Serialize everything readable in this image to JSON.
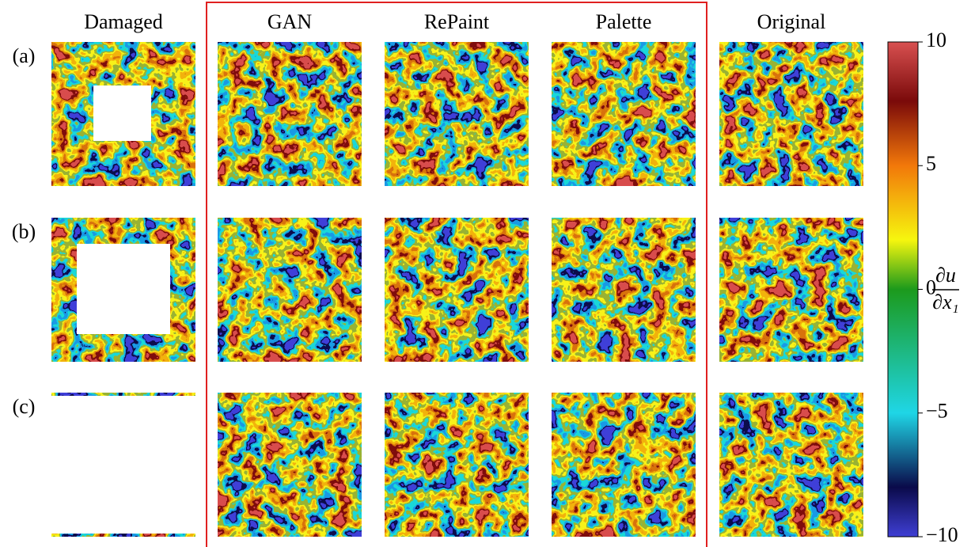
{
  "figure": {
    "columns": [
      "Damaged",
      "GAN",
      "RePaint",
      "Palette",
      "Original"
    ],
    "rows": [
      "(a)",
      "(b)",
      "(c)"
    ],
    "colorbar": {
      "lim": [
        -10,
        10
      ],
      "ticks": [
        {
          "value": -10,
          "label": "−10"
        },
        {
          "value": -5,
          "label": "−5"
        },
        0,
        5,
        10
      ],
      "label_numerator": "∂u",
      "label_denominator": "∂x₁"
    }
  }
}
